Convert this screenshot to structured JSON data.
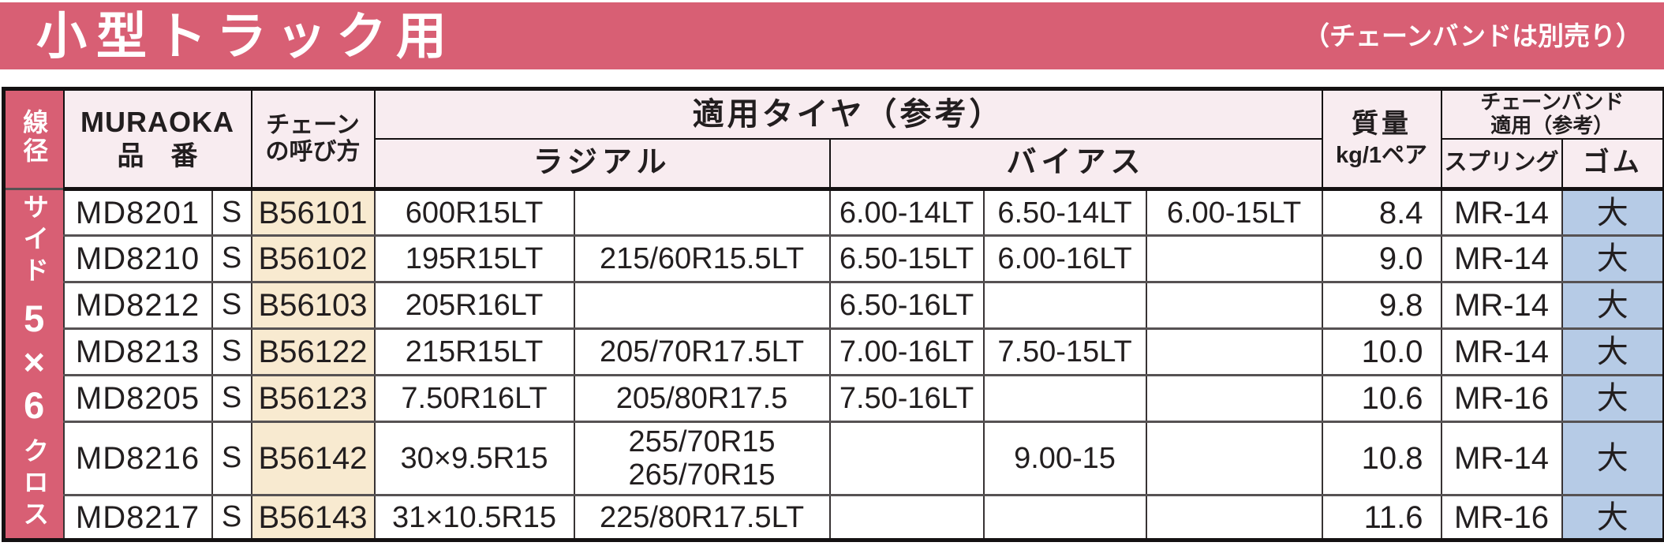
{
  "banner": {
    "title": "小型トラック用",
    "note": "（チェーンバンドは別売り）"
  },
  "colors": {
    "accent_pink": "#d85f74",
    "header_pale_pink": "#f8ecf0",
    "chain_column_cream": "#f8ead0",
    "rubber_column_blue": "#b6cbe6",
    "text_dark": "#221e1f"
  },
  "table": {
    "headers": {
      "wire_diameter": "線径",
      "brand_line1": "MURAOKA",
      "brand_line2": "品　番",
      "chain_line1": "チェーン",
      "chain_line2": "の呼び方",
      "tires": "適用タイヤ（参考）",
      "radial": "ラジアル",
      "bias": "バイアス",
      "mass_line1": "質量",
      "mass_line2": "kg/1ペア",
      "band_line1": "チェーンバンド",
      "band_line2": "適用（参考）",
      "spring": "スプリング",
      "rubber": "ゴム"
    },
    "side_label": {
      "prefix": "サイド",
      "size": "5×6",
      "suffix": "クロス"
    },
    "rows": [
      {
        "part": "MD8201",
        "s": "S",
        "chain": "B56101",
        "radial": [
          "600R15LT",
          ""
        ],
        "bias": [
          "6.00-14LT",
          "6.50-14LT",
          "6.00-15LT"
        ],
        "mass": "8.4",
        "spring": "MR-14",
        "rubber": "大"
      },
      {
        "part": "MD8210",
        "s": "S",
        "chain": "B56102",
        "radial": [
          "195R15LT",
          "215/60R15.5LT"
        ],
        "bias": [
          "6.50-15LT",
          "6.00-16LT",
          ""
        ],
        "mass": "9.0",
        "spring": "MR-14",
        "rubber": "大"
      },
      {
        "part": "MD8212",
        "s": "S",
        "chain": "B56103",
        "radial": [
          "205R16LT",
          ""
        ],
        "bias": [
          "6.50-16LT",
          "",
          ""
        ],
        "mass": "9.8",
        "spring": "MR-14",
        "rubber": "大"
      },
      {
        "part": "MD8213",
        "s": "S",
        "chain": "B56122",
        "radial": [
          "215R15LT",
          "205/70R17.5LT"
        ],
        "bias": [
          "7.00-16LT",
          "7.50-15LT",
          ""
        ],
        "mass": "10.0",
        "spring": "MR-14",
        "rubber": "大"
      },
      {
        "part": "MD8205",
        "s": "S",
        "chain": "B56123",
        "radial": [
          "7.50R16LT",
          "205/80R17.5"
        ],
        "bias": [
          "7.50-16LT",
          "",
          ""
        ],
        "mass": "10.6",
        "spring": "MR-16",
        "rubber": "大"
      },
      {
        "part": "MD8216",
        "s": "S",
        "chain": "B56142",
        "radial": [
          "30×9.5R15",
          "255/70R15\n265/70R15"
        ],
        "bias": [
          "",
          "9.00-15",
          ""
        ],
        "mass": "10.8",
        "spring": "MR-14",
        "rubber": "大"
      },
      {
        "part": "MD8217",
        "s": "S",
        "chain": "B56143",
        "radial": [
          "31×10.5R15",
          "225/80R17.5LT"
        ],
        "bias": [
          "",
          "",
          ""
        ],
        "mass": "11.6",
        "spring": "MR-16",
        "rubber": "大"
      }
    ]
  }
}
